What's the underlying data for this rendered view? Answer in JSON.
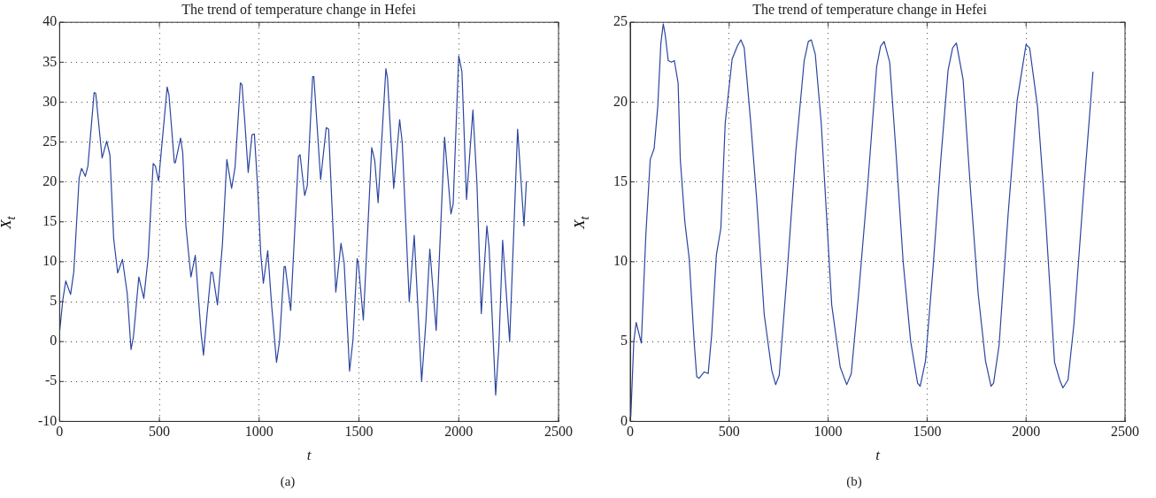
{
  "chart_data": [
    {
      "type": "line",
      "title": "The trend of temperature change in Hefei",
      "xlabel": "t",
      "ylabel": "X$_{t}$",
      "annotations": [
        "(a)"
      ],
      "xlim": [
        0,
        2500
      ],
      "xticks": [
        0,
        500,
        1000,
        1500,
        2000,
        2500
      ],
      "ylim": [
        -10,
        40
      ],
      "yticks": [
        -10,
        -5,
        0,
        5,
        10,
        15,
        20,
        25,
        30,
        35,
        40
      ],
      "grid": true,
      "legend": false,
      "marker": "none",
      "line_style": "solid",
      "series": [
        {
          "color": "#2b45a0",
          "x": [
            0,
            16,
            31,
            55,
            71,
            98,
            110,
            129,
            142,
            173,
            181,
            213,
            236,
            252,
            271,
            291,
            315,
            339,
            358,
            370,
            397,
            422,
            444,
            469,
            480,
            496,
            539,
            548,
            575,
            580,
            606,
            617,
            633,
            658,
            680,
            709,
            721,
            737,
            759,
            767,
            791,
            816,
            838,
            862,
            879,
            906,
            914,
            929,
            945,
            964,
            976,
            992,
            1008,
            1021,
            1043,
            1063,
            1087,
            1102,
            1125,
            1131,
            1158,
            1197,
            1205,
            1228,
            1241,
            1268,
            1274,
            1308,
            1336,
            1348,
            1384,
            1410,
            1426,
            1453,
            1470,
            1491,
            1497,
            1522,
            1564,
            1579,
            1596,
            1635,
            1643,
            1674,
            1704,
            1717,
            1752,
            1777,
            1814,
            1835,
            1855,
            1887,
            1929,
            1961,
            1972,
            2000,
            2016,
            2039,
            2071,
            2091,
            2113,
            2141,
            2152,
            2185,
            2201,
            2220,
            2255,
            2295,
            2327,
            2339
          ],
          "values": [
            1.2,
            5.2,
            7.6,
            5.9,
            8.7,
            20.5,
            21.7,
            20.7,
            22,
            31.2,
            31.1,
            23,
            25.1,
            23.4,
            12.9,
            8.6,
            10.3,
            6,
            -1,
            0.6,
            8.1,
            5.4,
            10.6,
            22.3,
            22,
            20.1,
            31.9,
            30.9,
            22.4,
            22.4,
            25.5,
            23.7,
            14.5,
            8.1,
            10.8,
            1,
            -1.7,
            2.9,
            8.7,
            8.6,
            4.6,
            12.2,
            22.8,
            19.2,
            21.8,
            32.4,
            32.2,
            27.2,
            21.2,
            25.9,
            26,
            19.5,
            11,
            7.3,
            11.4,
            4.4,
            -2.6,
            0,
            9.4,
            9.4,
            3.9,
            23.2,
            23.4,
            18.3,
            19.5,
            33.2,
            33.2,
            20.3,
            26.8,
            26.6,
            6.2,
            12.3,
            9.8,
            -3.7,
            0.2,
            10.4,
            9.8,
            2.7,
            24.3,
            22.7,
            17.4,
            34.2,
            33,
            19.2,
            27.8,
            24.9,
            5,
            13.3,
            -5,
            2.3,
            11.6,
            1.4,
            25.6,
            16,
            17.2,
            35.8,
            33.8,
            17.8,
            29,
            19.9,
            3.5,
            14.5,
            11.8,
            -6.7,
            -0.6,
            12.7,
            0,
            26.6,
            14.5,
            20.1
          ]
        }
      ]
    },
    {
      "type": "line",
      "title": "The trend of temperature change in Hefei",
      "xlabel": "t",
      "ylabel": "X$_{t}$",
      "annotations": [
        "(b)"
      ],
      "xlim": [
        0,
        2500
      ],
      "xticks": [
        0,
        500,
        1000,
        1500,
        2000,
        2500
      ],
      "ylim": [
        0,
        25
      ],
      "yticks": [
        0,
        5,
        10,
        15,
        20,
        25
      ],
      "grid": true,
      "legend": false,
      "marker": "none",
      "line_style": "solid",
      "series": [
        {
          "color": "#2b45a0",
          "x": [
            3,
            18,
            30,
            56,
            79,
            101,
            121,
            139,
            155,
            167,
            177,
            192,
            208,
            223,
            242,
            253,
            276,
            298,
            324,
            336,
            348,
            374,
            394,
            412,
            435,
            458,
            480,
            515,
            541,
            559,
            576,
            609,
            639,
            677,
            715,
            735,
            753,
            791,
            836,
            879,
            900,
            915,
            935,
            965,
            1018,
            1061,
            1094,
            1117,
            1154,
            1200,
            1245,
            1265,
            1283,
            1311,
            1341,
            1379,
            1417,
            1452,
            1465,
            1492,
            1530,
            1568,
            1606,
            1629,
            1648,
            1682,
            1720,
            1758,
            1795,
            1823,
            1836,
            1864,
            1909,
            1955,
            2000,
            2018,
            2058,
            2098,
            2144,
            2170,
            2186,
            2212,
            2242,
            2288,
            2338
          ],
          "values": [
            0.3,
            5,
            6.2,
            4.9,
            11.7,
            16.4,
            17.1,
            19.7,
            23.7,
            24.9,
            24.2,
            22.6,
            22.5,
            22.6,
            21.2,
            16.4,
            12.5,
            10.2,
            4.8,
            2.8,
            2.7,
            3.1,
            3,
            5.5,
            10.4,
            12.1,
            18.7,
            22.7,
            23.5,
            23.9,
            23.4,
            18.7,
            13.9,
            6.7,
            3.2,
            2.3,
            2.9,
            9,
            16.8,
            22.6,
            23.8,
            23.9,
            23,
            18.7,
            7.3,
            3.4,
            2.3,
            3,
            8,
            14.8,
            22.2,
            23.5,
            23.8,
            22.5,
            17.2,
            10,
            5,
            2.4,
            2.2,
            3.8,
            9.6,
            16.2,
            22,
            23.4,
            23.7,
            21.4,
            14.4,
            8,
            3.8,
            2.2,
            2.4,
            4.8,
            12.9,
            20.1,
            23.6,
            23.4,
            19.7,
            12.9,
            3.7,
            2.6,
            2.1,
            2.6,
            6.1,
            13.9,
            21.9
          ]
        }
      ]
    }
  ]
}
